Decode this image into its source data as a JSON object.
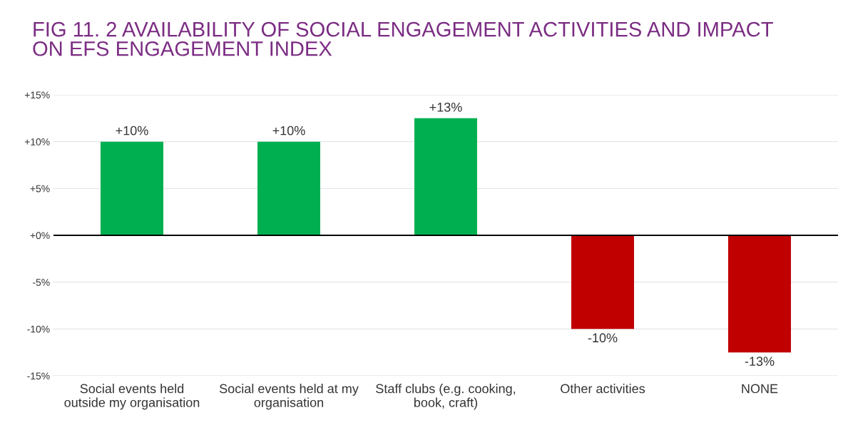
{
  "chart_data": {
    "type": "bar",
    "title": "FIG 11. 2 AVAILABILITY OF SOCIAL ENGAGEMENT ACTIVITIES AND IMPACT\nON EFS ENGAGEMENT INDEX",
    "categories": [
      "Social events held\noutside my organisation",
      "Social events held at my\norganisation",
      "Staff clubs (e.g. cooking,\nbook, craft)",
      "Other activities",
      "NONE"
    ],
    "values": [
      10,
      10,
      12.5,
      -10,
      -12.5
    ],
    "colors": [
      "#00b050",
      "#00b050",
      "#00b050",
      "#c00000",
      "#c00000"
    ],
    "value_labels": [
      "+10%",
      "+10%",
      "+13%",
      "-10%",
      "-13%"
    ],
    "ylim": [
      -15,
      15
    ],
    "yticks": [
      {
        "value": -15,
        "label": "-15%"
      },
      {
        "value": -10,
        "label": "-10%"
      },
      {
        "value": -5,
        "label": "-5%"
      },
      {
        "value": 0,
        "label": "+0%"
      },
      {
        "value": 5,
        "label": "+5%"
      },
      {
        "value": 10,
        "label": "+10%"
      },
      {
        "value": 15,
        "label": "+15%"
      }
    ],
    "ref_lines": [
      {
        "axis": "y",
        "value": 0,
        "color": "#000000"
      }
    ],
    "grid": "y",
    "legend": false
  }
}
